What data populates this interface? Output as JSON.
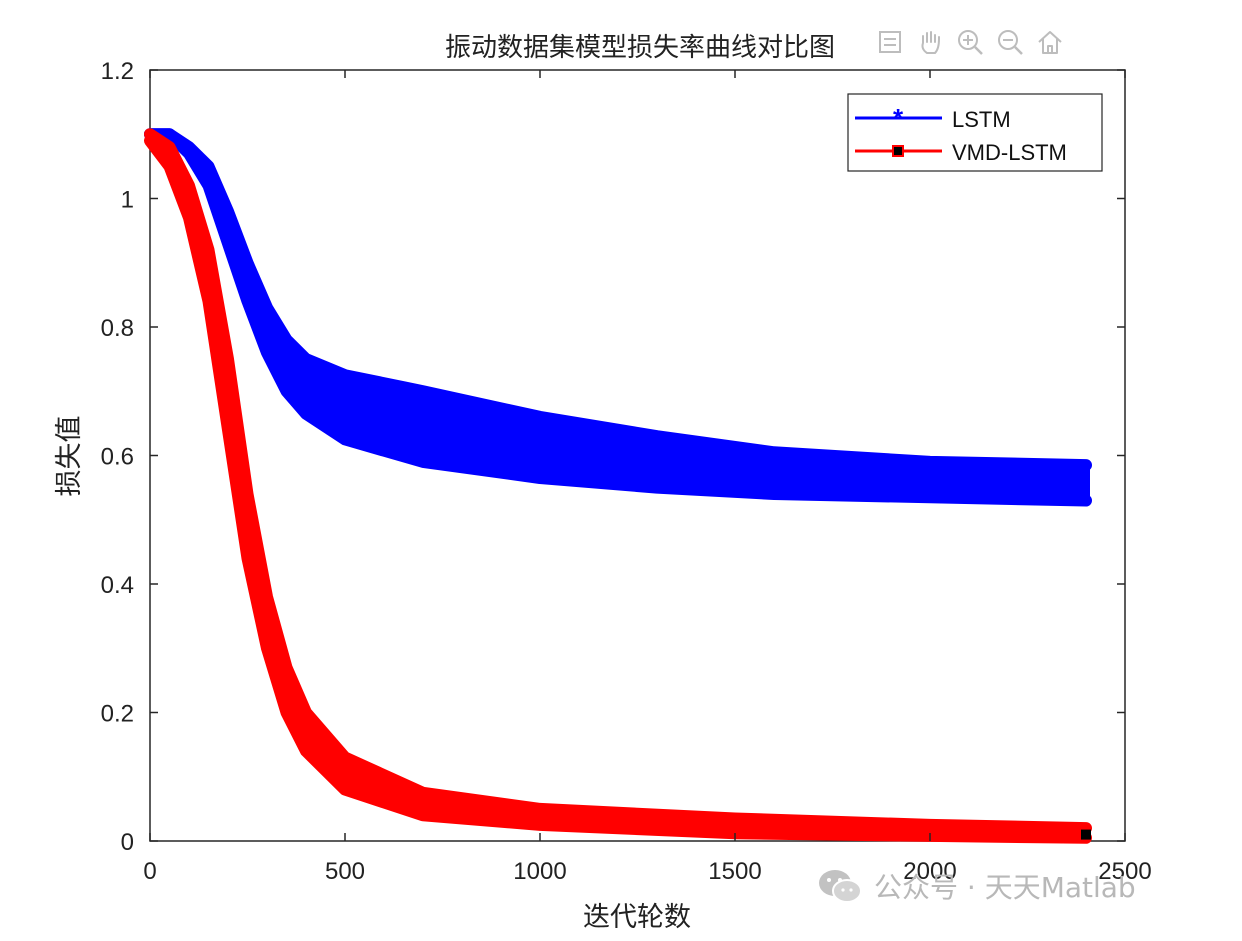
{
  "chart_data": {
    "type": "line",
    "title": "振动数据集模型损失率曲线对比图",
    "xlabel": "迭代轮数",
    "ylabel": "损失值",
    "xlim": [
      0,
      2500
    ],
    "ylim": [
      0,
      1.2
    ],
    "xticks": [
      "0",
      "500",
      "1000",
      "1500",
      "2000",
      "2500"
    ],
    "yticks": [
      "0",
      "0.2",
      "0.4",
      "0.6",
      "0.8",
      "1",
      "1.2"
    ],
    "grid": false,
    "legend_position": "top-right",
    "series": [
      {
        "name": "LSTM",
        "color": "#0000ff",
        "marker": "asterisk",
        "upper": [
          [
            0,
            1.1
          ],
          [
            50,
            1.1
          ],
          [
            100,
            1.08
          ],
          [
            150,
            1.05
          ],
          [
            200,
            0.98
          ],
          [
            250,
            0.9
          ],
          [
            300,
            0.83
          ],
          [
            350,
            0.78
          ],
          [
            400,
            0.75
          ],
          [
            500,
            0.725
          ],
          [
            700,
            0.7
          ],
          [
            1000,
            0.66
          ],
          [
            1300,
            0.63
          ],
          [
            1600,
            0.605
          ],
          [
            2000,
            0.59
          ],
          [
            2400,
            0.585
          ]
        ],
        "lower": [
          [
            0,
            1.1
          ],
          [
            50,
            1.1
          ],
          [
            100,
            1.07
          ],
          [
            150,
            1.02
          ],
          [
            200,
            0.93
          ],
          [
            250,
            0.84
          ],
          [
            300,
            0.76
          ],
          [
            350,
            0.7
          ],
          [
            400,
            0.665
          ],
          [
            500,
            0.625
          ],
          [
            700,
            0.59
          ],
          [
            1000,
            0.565
          ],
          [
            1300,
            0.55
          ],
          [
            1600,
            0.54
          ],
          [
            2000,
            0.535
          ],
          [
            2400,
            0.53
          ]
        ]
      },
      {
        "name": "VMD-LSTM",
        "color": "#ff0000",
        "marker": "square",
        "upper": [
          [
            0,
            1.1
          ],
          [
            50,
            1.08
          ],
          [
            100,
            1.02
          ],
          [
            150,
            0.92
          ],
          [
            200,
            0.75
          ],
          [
            250,
            0.54
          ],
          [
            300,
            0.38
          ],
          [
            350,
            0.27
          ],
          [
            400,
            0.2
          ],
          [
            500,
            0.13
          ],
          [
            700,
            0.075
          ],
          [
            1000,
            0.05
          ],
          [
            1500,
            0.035
          ],
          [
            2000,
            0.025
          ],
          [
            2400,
            0.02
          ]
        ],
        "lower": [
          [
            0,
            1.09
          ],
          [
            50,
            1.05
          ],
          [
            100,
            0.97
          ],
          [
            150,
            0.84
          ],
          [
            200,
            0.64
          ],
          [
            250,
            0.44
          ],
          [
            300,
            0.3
          ],
          [
            350,
            0.2
          ],
          [
            400,
            0.14
          ],
          [
            500,
            0.08
          ],
          [
            700,
            0.04
          ],
          [
            1000,
            0.025
          ],
          [
            1500,
            0.012
          ],
          [
            2000,
            0.008
          ],
          [
            2400,
            0.005
          ]
        ]
      }
    ]
  },
  "toolbar": {
    "icons": [
      "export-icon",
      "pan-icon",
      "zoom-in-icon",
      "zoom-out-icon",
      "home-icon"
    ]
  },
  "watermark": {
    "text": "公众号 · 天天Matlab"
  }
}
